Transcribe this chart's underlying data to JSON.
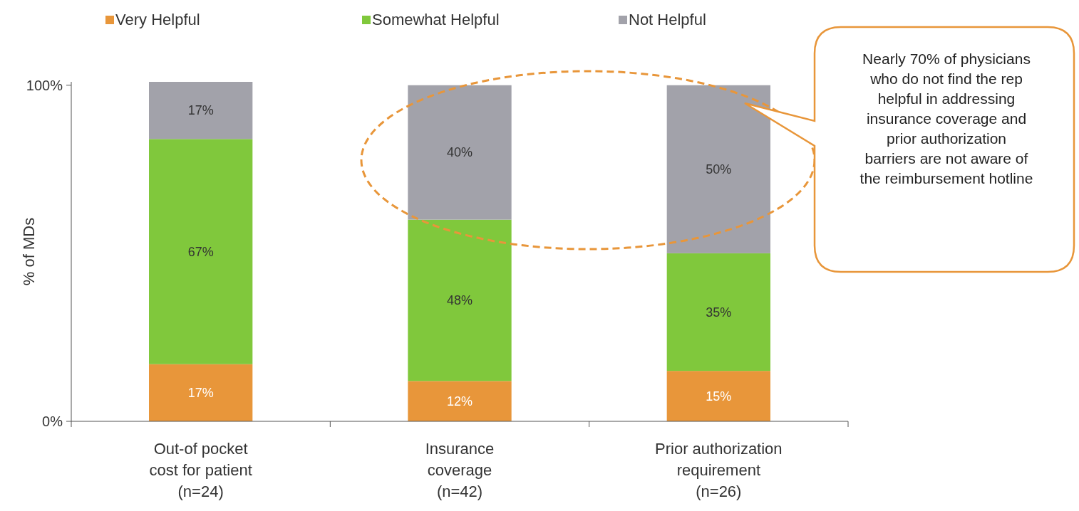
{
  "chart_data": {
    "type": "bar",
    "stacked": true,
    "ylabel": "% of MDs",
    "categories": [
      "Out-of pocket\ncost for patient\n(n=24)",
      "Insurance\ncoverage\n(n=42)",
      "Prior authorization\nrequirement\n(n=26)"
    ],
    "series": [
      {
        "name": "Very Helpful",
        "color": "#e8963a",
        "values": [
          17,
          12,
          15
        ],
        "value_labels": [
          "17%",
          "12%",
          "15%"
        ]
      },
      {
        "name": "Somewhat Helpful",
        "color": "#80c83c",
        "values": [
          67,
          48,
          35
        ],
        "value_labels": [
          "67%",
          "48%",
          "35%"
        ]
      },
      {
        "name": "Not Helpful",
        "color": "#a2a2aa",
        "values": [
          17,
          40,
          50
        ],
        "value_labels": [
          "17%",
          "40%",
          "50%"
        ]
      }
    ],
    "ylim": [
      0,
      101
    ],
    "yticks": [
      {
        "value": 0,
        "label": "0%"
      },
      {
        "value": 100,
        "label": "100%"
      }
    ],
    "legend": "top",
    "grid": false,
    "annotations": [
      "Nearly 70% of physicians who do not find the rep helpful in addressing insurance coverage and prior authorization barriers are not aware of the reimbursement hotline"
    ]
  }
}
